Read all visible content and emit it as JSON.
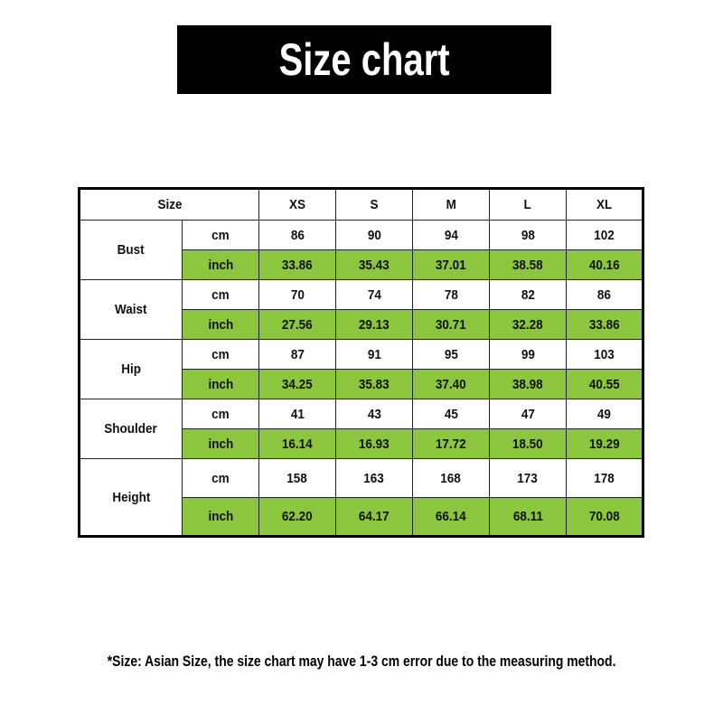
{
  "title": "Size chart",
  "table": {
    "header_label": "Size",
    "sizes": [
      "XS",
      "S",
      "M",
      "L",
      "XL"
    ],
    "measurements": [
      {
        "name": "Bust",
        "cm_label": "cm",
        "inch_label": "inch",
        "cm": [
          "86",
          "90",
          "94",
          "98",
          "102"
        ],
        "inch": [
          "33.86",
          "35.43",
          "37.01",
          "38.58",
          "40.16"
        ]
      },
      {
        "name": "Waist",
        "cm_label": "cm",
        "inch_label": "inch",
        "cm": [
          "70",
          "74",
          "78",
          "82",
          "86"
        ],
        "inch": [
          "27.56",
          "29.13",
          "30.71",
          "32.28",
          "33.86"
        ]
      },
      {
        "name": "Hip",
        "cm_label": "cm",
        "inch_label": "inch",
        "cm": [
          "87",
          "91",
          "95",
          "99",
          "103"
        ],
        "inch": [
          "34.25",
          "35.83",
          "37.40",
          "38.98",
          "40.55"
        ]
      },
      {
        "name": "Shoulder",
        "cm_label": "cm",
        "inch_label": "inch",
        "cm": [
          "41",
          "43",
          "45",
          "47",
          "49"
        ],
        "inch": [
          "16.14",
          "16.93",
          "17.72",
          "18.50",
          "19.29"
        ]
      },
      {
        "name": "Height",
        "cm_label": "cm",
        "inch_label": "inch",
        "cm": [
          "158",
          "163",
          "168",
          "173",
          "178"
        ],
        "inch": [
          "62.20",
          "64.17",
          "66.14",
          "68.11",
          "70.08"
        ]
      }
    ]
  },
  "footnote": "*Size: Asian Size, the size chart may have 1-3 cm error due to the measuring method.",
  "colors": {
    "inch_row_bg": "#8cc63e",
    "title_bg": "#000000",
    "title_text": "#ffffff"
  }
}
